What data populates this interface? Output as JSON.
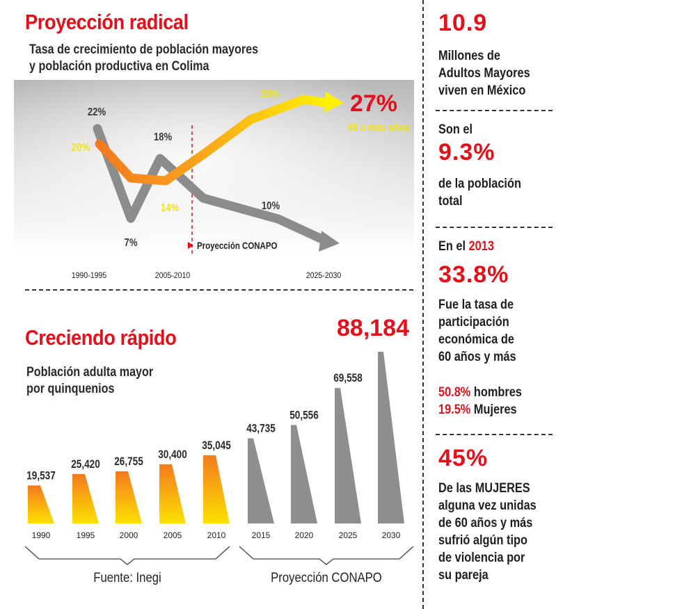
{
  "chart_data": [
    {
      "type": "line",
      "title": "Proyección radical",
      "subtitle": [
        "Tasa de crecimiento de población mayores",
        "y población productiva en Colima"
      ],
      "x_ticks": [
        "1990-1995",
        "2005-2010",
        "2025-2030"
      ],
      "projection_label": "Proyección CONAPO",
      "end_label": "27%",
      "end_sublabel": "65 o más años",
      "series": [
        {
          "color": "#8c8c8c",
          "labels": [
            "22%",
            "7%",
            "18%",
            "10%"
          ]
        },
        {
          "color": "#f7931e",
          "labels": [
            "20%",
            "14%",
            "25%"
          ]
        }
      ]
    },
    {
      "type": "bar",
      "title": "Creciendo rápido",
      "subtitle": [
        "Población adulta mayor",
        "por quinquenios"
      ],
      "categories": [
        "1990",
        "1995",
        "2000",
        "2005",
        "2010",
        "2015",
        "2020",
        "2025",
        "2030"
      ],
      "values": [
        19537,
        25420,
        26755,
        30400,
        35045,
        43735,
        50556,
        69558,
        88184
      ],
      "value_labels": [
        "19,537",
        "25,420",
        "26,755",
        "30,400",
        "35,045",
        "43,735",
        "50,556",
        "69,558",
        "88,184"
      ],
      "groups": [
        {
          "label": "Fuente: Inegi",
          "from": 0,
          "to": 4,
          "color": "#f7931e"
        },
        {
          "label": "Proyección CONAPO",
          "from": 5,
          "to": 8,
          "color": "#8e8e8e"
        }
      ]
    }
  ],
  "sidebar": {
    "s1_big": "10.9",
    "s1_lines": [
      "Millones de",
      "Adultos Mayores",
      "viven en México"
    ],
    "s2_pre": "Son el",
    "s2_big": "9.3%",
    "s2_lines": [
      "de la población",
      "total"
    ],
    "s3_pre": "En el ",
    "s3_year": "2013",
    "s3_big": "33.8%",
    "s3_lines": [
      "Fue la tasa de",
      "participación",
      "económica de",
      "60 años y más"
    ],
    "s3_men_pct": "50.8%",
    "s3_men_txt": " hombres",
    "s3_women_pct": "19.5%",
    "s3_women_txt": " Mujeres",
    "s4_big": "45%",
    "s4_l1_pre": "De las ",
    "s4_l1_bold": "MUJERES",
    "s4_lines": [
      "alguna vez unidas",
      "de 60 años y más",
      "sufrió algún tipo",
      "de violencia por",
      "su pareja"
    ]
  }
}
